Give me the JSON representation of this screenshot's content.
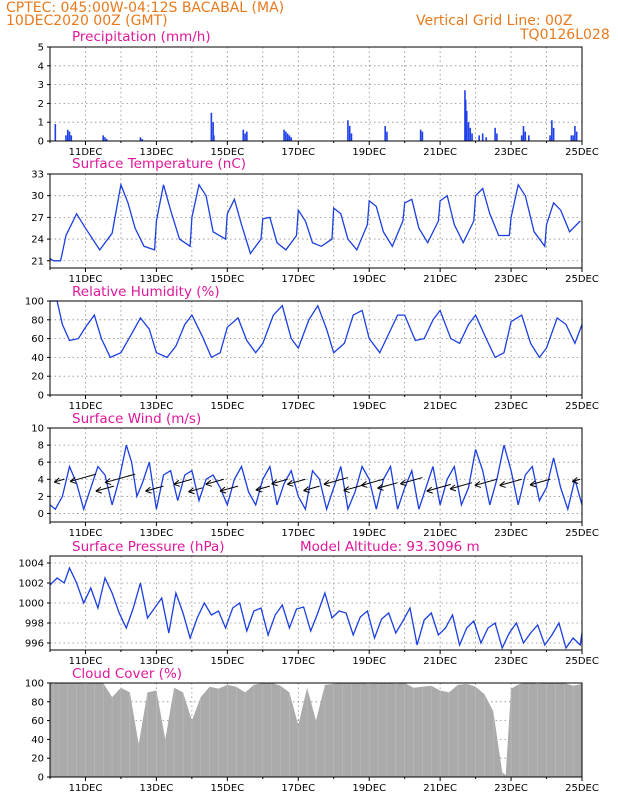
{
  "header": {
    "line1": "CPTEC:   045:00W-04:12S   BACABAL (MA)",
    "line2": "10DEC2020 00Z (GMT)",
    "grid_note": "Vertical Grid Line: 00Z",
    "code": "TQ0126L028"
  },
  "colors": {
    "header": "#e87a1e",
    "title": "#e0189a",
    "series": "#1b3fe0",
    "precip_bar": "#1f3fe8",
    "cloud_fill": "#aaaaaa"
  },
  "x_ticks": [
    "11DEC",
    "13DEC",
    "15DEC",
    "17DEC",
    "19DEC",
    "21DEC",
    "23DEC",
    "25DEC"
  ],
  "chart_data": [
    {
      "id": "precip",
      "type": "bar",
      "title": "Precipitation (mm/h)",
      "x_unit": "days since 10DEC2020 00Z",
      "ylim": [
        0,
        5
      ],
      "yticks": [
        0,
        1,
        2,
        3,
        4,
        5
      ],
      "grid": true,
      "x": [
        0.15,
        0.45,
        0.5,
        0.55,
        0.6,
        1.5,
        1.55,
        1.6,
        2.55,
        2.6,
        4.55,
        4.6,
        4.62,
        5.45,
        5.5,
        5.55,
        6.6,
        6.65,
        6.7,
        6.75,
        6.8,
        8.4,
        8.45,
        8.5,
        9.45,
        9.5,
        10.45,
        10.5,
        11.7,
        11.72,
        11.75,
        11.8,
        11.85,
        11.9,
        12.1,
        12.2,
        12.3,
        12.55,
        12.6,
        13.3,
        13.35,
        13.4,
        13.5,
        14.1,
        14.15,
        14.2,
        14.7,
        14.75,
        14.8,
        14.85
      ],
      "values": [
        0.9,
        0.3,
        0.6,
        0.5,
        0.3,
        0.3,
        0.2,
        0.1,
        0.2,
        0.1,
        1.5,
        1.0,
        0.3,
        0.6,
        0.4,
        0.5,
        0.6,
        0.5,
        0.4,
        0.3,
        0.2,
        1.1,
        0.8,
        0.4,
        0.8,
        0.5,
        0.6,
        0.5,
        2.7,
        2.2,
        1.6,
        1.0,
        0.7,
        0.4,
        0.3,
        0.4,
        0.2,
        0.7,
        0.4,
        0.3,
        0.8,
        0.5,
        0.3,
        0.3,
        1.1,
        0.7,
        0.3,
        0.3,
        0.8,
        0.5
      ]
    },
    {
      "id": "temp",
      "type": "line",
      "title": "Surface Temperature (nC)",
      "x_unit": "days since 10DEC2020 00Z",
      "ylim": [
        20,
        33
      ],
      "yticks": [
        21,
        24,
        27,
        30,
        33
      ],
      "grid": true,
      "x": [
        0,
        0.1,
        0.3,
        0.45,
        0.75,
        1.0,
        1.4,
        1.75,
        2.0,
        2.2,
        2.4,
        2.65,
        2.95,
        3.0,
        3.2,
        3.4,
        3.65,
        3.95,
        4.0,
        4.2,
        4.4,
        4.6,
        4.95,
        5.0,
        5.2,
        5.4,
        5.65,
        5.95,
        6.0,
        6.2,
        6.4,
        6.65,
        6.95,
        7.0,
        7.2,
        7.4,
        7.65,
        7.95,
        8.0,
        8.2,
        8.4,
        8.65,
        8.95,
        9.0,
        9.2,
        9.4,
        9.65,
        9.95,
        10.0,
        10.2,
        10.4,
        10.65,
        10.95,
        11.0,
        11.2,
        11.4,
        11.65,
        11.95,
        12.0,
        12.2,
        12.4,
        12.65,
        12.95,
        13.0,
        13.2,
        13.4,
        13.65,
        13.95,
        14.0,
        14.2,
        14.4,
        14.65,
        14.95
      ],
      "values": [
        21.3,
        21.0,
        21.0,
        24.5,
        27.5,
        25.5,
        22.5,
        24.8,
        31.5,
        29.0,
        25.5,
        23.0,
        22.5,
        26.5,
        31.5,
        28.0,
        24.0,
        23.0,
        27.0,
        31.5,
        30.0,
        25.0,
        24.0,
        27.5,
        29.5,
        26.0,
        22.0,
        24.0,
        26.8,
        27.0,
        23.5,
        22.5,
        24.5,
        28.0,
        26.5,
        23.5,
        23.0,
        24.0,
        28.3,
        27.5,
        24.0,
        22.5,
        26.0,
        29.3,
        28.5,
        25.0,
        23.0,
        26.5,
        29.0,
        29.5,
        25.5,
        23.5,
        26.5,
        29.3,
        30.0,
        26.0,
        23.5,
        26.5,
        30.0,
        31.0,
        27.5,
        24.5,
        24.5,
        27.0,
        31.5,
        30.0,
        25.0,
        23.0,
        26.0,
        29.0,
        28.0,
        25.0,
        26.5
      ],
      "ylabel": ""
    },
    {
      "id": "rh",
      "type": "line",
      "title": "Relative Humidity (%)",
      "x_unit": "days since 10DEC2020 00Z",
      "ylim": [
        0,
        100
      ],
      "yticks": [
        0,
        20,
        40,
        60,
        80,
        100
      ],
      "grid": true,
      "x": [
        0,
        0.2,
        0.35,
        0.55,
        0.8,
        1.0,
        1.25,
        1.45,
        1.7,
        2.0,
        2.3,
        2.55,
        2.8,
        3.0,
        3.3,
        3.55,
        3.8,
        4.0,
        4.3,
        4.55,
        4.8,
        5.0,
        5.3,
        5.55,
        5.8,
        6.0,
        6.3,
        6.55,
        6.8,
        7.0,
        7.3,
        7.55,
        7.8,
        8.0,
        8.3,
        8.55,
        8.8,
        9.0,
        9.3,
        9.55,
        9.8,
        10.0,
        10.3,
        10.55,
        10.8,
        11.0,
        11.3,
        11.55,
        11.8,
        12.0,
        12.3,
        12.55,
        12.8,
        13.0,
        13.3,
        13.55,
        13.8,
        14.0,
        14.3,
        14.55,
        14.8,
        15.0
      ],
      "values": [
        100,
        100,
        75,
        58,
        60,
        72,
        85,
        60,
        40,
        45,
        65,
        82,
        70,
        45,
        40,
        52,
        75,
        85,
        62,
        40,
        45,
        72,
        82,
        58,
        45,
        55,
        85,
        95,
        60,
        50,
        80,
        95,
        70,
        45,
        55,
        85,
        90,
        60,
        45,
        65,
        85,
        85,
        58,
        60,
        80,
        90,
        60,
        55,
        75,
        85,
        60,
        40,
        45,
        78,
        85,
        55,
        40,
        50,
        82,
        75,
        55,
        75
      ]
    },
    {
      "id": "wind",
      "type": "line",
      "title": "Surface Wind (m/s)",
      "x_unit": "days since 10DEC2020 00Z",
      "ylim": [
        -1,
        10
      ],
      "yticks": [
        0,
        2,
        4,
        6,
        8,
        10
      ],
      "grid": true,
      "x": [
        0,
        0.15,
        0.35,
        0.55,
        0.75,
        0.95,
        1.15,
        1.35,
        1.55,
        1.75,
        1.95,
        2.15,
        2.3,
        2.45,
        2.6,
        2.8,
        3.0,
        3.2,
        3.4,
        3.6,
        3.8,
        4.0,
        4.2,
        4.4,
        4.6,
        4.8,
        5.0,
        5.2,
        5.4,
        5.6,
        5.8,
        6.0,
        6.2,
        6.4,
        6.6,
        6.8,
        7.0,
        7.2,
        7.4,
        7.6,
        7.8,
        8.0,
        8.2,
        8.4,
        8.6,
        8.8,
        9.0,
        9.2,
        9.4,
        9.6,
        9.8,
        10.0,
        10.2,
        10.4,
        10.6,
        10.8,
        11.0,
        11.2,
        11.4,
        11.6,
        11.8,
        12.0,
        12.2,
        12.4,
        12.6,
        12.8,
        13.0,
        13.2,
        13.4,
        13.6,
        13.8,
        14.0,
        14.2,
        14.4,
        14.6,
        14.8,
        15.0
      ],
      "values": [
        1.0,
        0.5,
        2.0,
        5.5,
        3.5,
        0.5,
        3.0,
        5.5,
        4.5,
        1.0,
        4.0,
        8.0,
        6.0,
        2.0,
        3.5,
        6.0,
        0.5,
        4.5,
        5.0,
        1.5,
        4.5,
        5.0,
        1.5,
        4.0,
        4.5,
        3.0,
        1.0,
        4.0,
        5.5,
        2.5,
        1.0,
        4.0,
        5.5,
        1.0,
        3.5,
        5.0,
        2.0,
        0.5,
        5.0,
        4.0,
        0.5,
        3.0,
        5.5,
        0.5,
        2.5,
        5.5,
        4.0,
        0.5,
        4.0,
        5.5,
        0.5,
        3.0,
        5.0,
        0.5,
        3.0,
        5.5,
        1.0,
        4.0,
        5.5,
        1.0,
        3.0,
        7.5,
        5.0,
        1.0,
        4.0,
        8.0,
        5.0,
        1.0,
        4.5,
        5.5,
        1.5,
        3.0,
        6.5,
        3.0,
        0.5,
        4.0,
        1.0
      ],
      "arrows": [
        {
          "x": 0.4,
          "y": 4.0,
          "len": 10
        },
        {
          "x": 1.3,
          "y": 4.6,
          "len": 26
        },
        {
          "x": 2.4,
          "y": 4.6,
          "len": 30
        },
        {
          "x": 1.8,
          "y": 3.2,
          "len": 18
        },
        {
          "x": 3.2,
          "y": 3.2,
          "len": 18
        },
        {
          "x": 4.0,
          "y": 4.0,
          "len": 18
        },
        {
          "x": 4.3,
          "y": 3.0,
          "len": 14
        },
        {
          "x": 4.9,
          "y": 4.0,
          "len": 18
        },
        {
          "x": 5.3,
          "y": 3.2,
          "len": 18
        },
        {
          "x": 6.2,
          "y": 3.2,
          "len": 14
        },
        {
          "x": 6.7,
          "y": 4.0,
          "len": 16
        },
        {
          "x": 7.2,
          "y": 4.0,
          "len": 18
        },
        {
          "x": 7.6,
          "y": 3.2,
          "len": 16
        },
        {
          "x": 8.4,
          "y": 4.2,
          "len": 24
        },
        {
          "x": 8.9,
          "y": 3.4,
          "len": 22
        },
        {
          "x": 9.4,
          "y": 4.0,
          "len": 22
        },
        {
          "x": 9.8,
          "y": 3.6,
          "len": 20
        },
        {
          "x": 10.5,
          "y": 4.2,
          "len": 22
        },
        {
          "x": 11.3,
          "y": 3.4,
          "len": 24
        },
        {
          "x": 11.9,
          "y": 3.6,
          "len": 22
        },
        {
          "x": 12.6,
          "y": 4.0,
          "len": 22
        },
        {
          "x": 13.3,
          "y": 4.0,
          "len": 22
        },
        {
          "x": 14.1,
          "y": 4.0,
          "len": 20
        },
        {
          "x": 14.95,
          "y": 4.0,
          "len": 8
        }
      ]
    },
    {
      "id": "pres",
      "type": "line",
      "title": "Surface Pressure (hPa)",
      "subtitle": "Model Altitude: 93.3096 m",
      "x_unit": "days since 10DEC2020 00Z",
      "ylim": [
        995.3,
        1004.7
      ],
      "yticks": [
        996,
        998,
        1000,
        1002,
        1004
      ],
      "grid": true,
      "x": [
        0,
        0.2,
        0.4,
        0.55,
        0.75,
        0.95,
        1.15,
        1.35,
        1.55,
        1.75,
        1.95,
        2.15,
        2.35,
        2.55,
        2.75,
        2.95,
        3.15,
        3.35,
        3.55,
        3.75,
        3.95,
        4.15,
        4.35,
        4.55,
        4.75,
        4.95,
        5.15,
        5.35,
        5.55,
        5.75,
        5.95,
        6.15,
        6.35,
        6.55,
        6.75,
        6.95,
        7.15,
        7.35,
        7.55,
        7.75,
        7.95,
        8.15,
        8.35,
        8.55,
        8.75,
        8.95,
        9.15,
        9.35,
        9.55,
        9.75,
        9.95,
        10.15,
        10.35,
        10.55,
        10.75,
        10.95,
        11.15,
        11.35,
        11.55,
        11.75,
        11.95,
        12.15,
        12.35,
        12.55,
        12.75,
        12.95,
        13.15,
        13.35,
        13.55,
        13.75,
        13.95,
        14.15,
        14.35,
        14.55,
        14.75,
        14.95,
        15.0
      ],
      "values": [
        1001.8,
        1002.5,
        1002.0,
        1003.5,
        1002.0,
        1000.0,
        1001.5,
        999.5,
        1002.5,
        1001.0,
        999.0,
        997.5,
        999.5,
        1002.0,
        998.5,
        999.5,
        1000.5,
        997.0,
        1001.0,
        999.0,
        996.5,
        998.5,
        1000.0,
        998.8,
        999.2,
        997.5,
        999.5,
        1000.0,
        997.2,
        999.2,
        999.5,
        996.8,
        998.8,
        999.8,
        997.5,
        999.4,
        999.6,
        997.2,
        999.0,
        1001.0,
        998.5,
        999.2,
        999.0,
        996.8,
        998.6,
        999.2,
        996.5,
        998.4,
        999.0,
        997.0,
        998.2,
        999.5,
        995.8,
        998.3,
        999.0,
        996.8,
        997.5,
        998.8,
        995.8,
        997.5,
        998.2,
        996.0,
        997.5,
        998.0,
        995.5,
        997.0,
        998.0,
        996.0,
        997.0,
        997.8,
        995.8,
        996.8,
        998.0,
        995.5,
        996.5,
        995.8,
        997.0
      ]
    },
    {
      "id": "cloud",
      "type": "area",
      "title": "Cloud Cover (%)",
      "x_unit": "days since 10DEC2020 00Z",
      "ylim": [
        0,
        100
      ],
      "yticks": [
        0,
        20,
        40,
        60,
        80,
        100
      ],
      "grid": true,
      "x": [
        0,
        0.1,
        0.25,
        0.5,
        0.75,
        1.0,
        1.25,
        1.5,
        1.75,
        2.0,
        2.25,
        2.5,
        2.75,
        3.0,
        3.25,
        3.5,
        3.75,
        4.0,
        4.25,
        4.5,
        4.75,
        5.0,
        5.25,
        5.5,
        5.75,
        6.0,
        6.25,
        6.5,
        6.75,
        7.0,
        7.25,
        7.5,
        7.75,
        8.0,
        8.25,
        8.5,
        8.75,
        9.0,
        9.25,
        9.5,
        9.75,
        10.0,
        10.25,
        10.5,
        10.75,
        11.0,
        11.25,
        11.5,
        11.75,
        12.0,
        12.25,
        12.5,
        12.75,
        12.85,
        13.0,
        13.25,
        13.5,
        13.75,
        14.0,
        14.25,
        14.5,
        14.75,
        15.0
      ],
      "values": [
        100,
        99,
        100,
        100,
        100,
        99,
        100,
        100,
        85,
        95,
        90,
        35,
        90,
        92,
        40,
        95,
        90,
        60,
        85,
        96,
        94,
        98,
        96,
        90,
        98,
        100,
        100,
        97,
        90,
        55,
        95,
        60,
        98,
        99,
        100,
        100,
        100,
        99,
        100,
        100,
        99,
        100,
        95,
        96,
        97,
        92,
        90,
        98,
        99,
        96,
        88,
        70,
        5,
        2,
        94,
        99,
        100,
        99,
        100,
        100,
        100,
        97,
        99
      ]
    }
  ]
}
